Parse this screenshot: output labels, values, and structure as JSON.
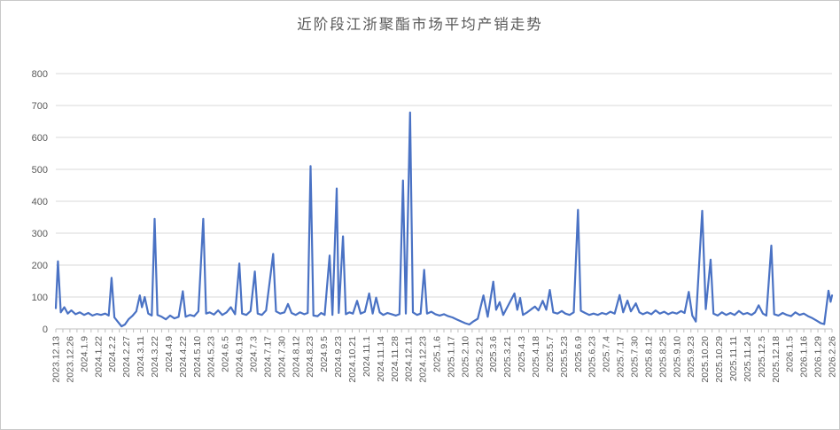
{
  "window": {
    "background": "#ffffff",
    "border_color": "#c9c9c9"
  },
  "chart_data": {
    "type": "line",
    "title": "近阶段江浙聚酯市场平均产销走势",
    "xlabel": "",
    "ylabel": "",
    "ylim": [
      0,
      800
    ],
    "yticks": [
      0,
      100,
      200,
      300,
      400,
      500,
      600,
      700,
      800
    ],
    "grid": true,
    "legend": "none",
    "x_unit": "category_index",
    "categories": [
      "2023.12.13",
      "2023.12.26",
      "2024.1.9",
      "2024.1.22",
      "2024.2.2",
      "2024.2.27",
      "2024.3.11",
      "2024.3.22",
      "2024.4.9",
      "2024.4.22",
      "2024.5.10",
      "2024.5.23",
      "2024.6.5",
      "2024.6.19",
      "2024.7.3",
      "2024.7.17",
      "2024.7.30",
      "2024.8.12",
      "2024.8.23",
      "2024.9.5",
      "2024.9.23",
      "2024.10.21",
      "2024.11.1",
      "2024.11.14",
      "2024.11.28",
      "2024.12.11",
      "2024.12.23",
      "2025.1.6",
      "2025.1.17",
      "2025.2.10",
      "2025.2.21",
      "2025.3.6",
      "2025.3.21",
      "2025.4.3",
      "2025.4.18",
      "2025.5.7",
      "2025.5.23",
      "2025.6.9",
      "2025.6.23",
      "2025.7.4",
      "2025.7.17",
      "2025.7.30",
      "2025.8.12",
      "2025.8.25",
      "2025.9.10",
      "2025.9.23",
      "2025.10.20",
      "2025.10.29",
      "2025.11.11",
      "2025.11.24",
      "2025.12.5",
      "2025.12.18",
      "2026.1.5",
      "2026.1.16",
      "2026.1.29",
      "2026.2.26"
    ],
    "series": [
      {
        "color": "#4a72c4",
        "points": [
          [
            0,
            65
          ],
          [
            0.15,
            212
          ],
          [
            0.35,
            52
          ],
          [
            0.6,
            68
          ],
          [
            0.85,
            48
          ],
          [
            1.1,
            58
          ],
          [
            1.4,
            46
          ],
          [
            1.7,
            52
          ],
          [
            2.0,
            44
          ],
          [
            2.3,
            50
          ],
          [
            2.6,
            42
          ],
          [
            2.9,
            47
          ],
          [
            3.2,
            44
          ],
          [
            3.5,
            48
          ],
          [
            3.75,
            42
          ],
          [
            3.95,
            160
          ],
          [
            4.15,
            36
          ],
          [
            4.4,
            22
          ],
          [
            4.65,
            8
          ],
          [
            4.9,
            14
          ],
          [
            5.15,
            30
          ],
          [
            5.45,
            42
          ],
          [
            5.7,
            55
          ],
          [
            5.95,
            105
          ],
          [
            6.1,
            68
          ],
          [
            6.3,
            100
          ],
          [
            6.55,
            48
          ],
          [
            6.8,
            42
          ],
          [
            7.0,
            345
          ],
          [
            7.2,
            44
          ],
          [
            7.5,
            38
          ],
          [
            7.8,
            30
          ],
          [
            8.1,
            42
          ],
          [
            8.4,
            33
          ],
          [
            8.7,
            38
          ],
          [
            9.0,
            118
          ],
          [
            9.2,
            38
          ],
          [
            9.5,
            44
          ],
          [
            9.8,
            40
          ],
          [
            10.1,
            55
          ],
          [
            10.45,
            345
          ],
          [
            10.65,
            48
          ],
          [
            10.9,
            52
          ],
          [
            11.2,
            45
          ],
          [
            11.5,
            58
          ],
          [
            11.8,
            44
          ],
          [
            12.1,
            52
          ],
          [
            12.4,
            68
          ],
          [
            12.7,
            46
          ],
          [
            13.0,
            205
          ],
          [
            13.2,
            48
          ],
          [
            13.5,
            44
          ],
          [
            13.8,
            56
          ],
          [
            14.1,
            180
          ],
          [
            14.3,
            48
          ],
          [
            14.6,
            44
          ],
          [
            14.9,
            58
          ],
          [
            15.4,
            235
          ],
          [
            15.6,
            55
          ],
          [
            15.9,
            48
          ],
          [
            16.2,
            52
          ],
          [
            16.45,
            78
          ],
          [
            16.7,
            50
          ],
          [
            17.0,
            44
          ],
          [
            17.3,
            52
          ],
          [
            17.6,
            46
          ],
          [
            17.85,
            50
          ],
          [
            18.05,
            510
          ],
          [
            18.25,
            42
          ],
          [
            18.55,
            40
          ],
          [
            18.8,
            50
          ],
          [
            19.05,
            44
          ],
          [
            19.4,
            230
          ],
          [
            19.6,
            44
          ],
          [
            19.9,
            440
          ],
          [
            20.05,
            50
          ],
          [
            20.35,
            290
          ],
          [
            20.55,
            46
          ],
          [
            20.8,
            52
          ],
          [
            21.05,
            48
          ],
          [
            21.35,
            88
          ],
          [
            21.6,
            48
          ],
          [
            21.9,
            54
          ],
          [
            22.2,
            111
          ],
          [
            22.45,
            48
          ],
          [
            22.7,
            98
          ],
          [
            22.95,
            52
          ],
          [
            23.2,
            44
          ],
          [
            23.5,
            50
          ],
          [
            23.8,
            46
          ],
          [
            24.1,
            42
          ],
          [
            24.35,
            46
          ],
          [
            24.6,
            465
          ],
          [
            24.8,
            48
          ],
          [
            25.1,
            678
          ],
          [
            25.3,
            52
          ],
          [
            25.6,
            44
          ],
          [
            25.85,
            48
          ],
          [
            26.1,
            185
          ],
          [
            26.3,
            48
          ],
          [
            26.6,
            54
          ],
          [
            26.9,
            46
          ],
          [
            27.2,
            42
          ],
          [
            27.5,
            46
          ],
          [
            27.8,
            40
          ],
          [
            28.1,
            36
          ],
          [
            28.4,
            30
          ],
          [
            28.7,
            24
          ],
          [
            29.0,
            18
          ],
          [
            29.3,
            14
          ],
          [
            29.6,
            24
          ],
          [
            29.9,
            32
          ],
          [
            30.3,
            105
          ],
          [
            30.6,
            38
          ],
          [
            31.0,
            148
          ],
          [
            31.2,
            60
          ],
          [
            31.45,
            84
          ],
          [
            31.7,
            44
          ],
          [
            32.5,
            111
          ],
          [
            32.7,
            60
          ],
          [
            32.9,
            97
          ],
          [
            33.1,
            44
          ],
          [
            33.4,
            52
          ],
          [
            33.7,
            62
          ],
          [
            33.95,
            70
          ],
          [
            34.2,
            58
          ],
          [
            34.5,
            88
          ],
          [
            34.75,
            60
          ],
          [
            35.0,
            122
          ],
          [
            35.25,
            52
          ],
          [
            35.55,
            48
          ],
          [
            35.85,
            56
          ],
          [
            36.1,
            48
          ],
          [
            36.4,
            44
          ],
          [
            36.7,
            52
          ],
          [
            37.0,
            373
          ],
          [
            37.2,
            57
          ],
          [
            37.5,
            50
          ],
          [
            37.8,
            44
          ],
          [
            38.1,
            48
          ],
          [
            38.4,
            44
          ],
          [
            38.7,
            50
          ],
          [
            39.0,
            46
          ],
          [
            39.3,
            54
          ],
          [
            39.6,
            48
          ],
          [
            39.95,
            106
          ],
          [
            40.2,
            52
          ],
          [
            40.5,
            89
          ],
          [
            40.75,
            55
          ],
          [
            41.1,
            80
          ],
          [
            41.35,
            52
          ],
          [
            41.6,
            46
          ],
          [
            41.9,
            52
          ],
          [
            42.2,
            46
          ],
          [
            42.5,
            58
          ],
          [
            42.8,
            48
          ],
          [
            43.1,
            54
          ],
          [
            43.4,
            46
          ],
          [
            43.7,
            52
          ],
          [
            44.0,
            48
          ],
          [
            44.3,
            56
          ],
          [
            44.55,
            50
          ],
          [
            44.85,
            116
          ],
          [
            45.1,
            42
          ],
          [
            45.35,
            23
          ],
          [
            45.8,
            370
          ],
          [
            46.05,
            62
          ],
          [
            46.4,
            217
          ],
          [
            46.6,
            48
          ],
          [
            46.9,
            42
          ],
          [
            47.2,
            52
          ],
          [
            47.5,
            44
          ],
          [
            47.8,
            50
          ],
          [
            48.1,
            44
          ],
          [
            48.4,
            56
          ],
          [
            48.7,
            46
          ],
          [
            49.0,
            50
          ],
          [
            49.3,
            44
          ],
          [
            49.55,
            52
          ],
          [
            49.8,
            74
          ],
          [
            50.1,
            48
          ],
          [
            50.35,
            42
          ],
          [
            50.7,
            261
          ],
          [
            50.9,
            46
          ],
          [
            51.2,
            42
          ],
          [
            51.5,
            50
          ],
          [
            51.8,
            44
          ],
          [
            52.1,
            40
          ],
          [
            52.4,
            52
          ],
          [
            52.7,
            44
          ],
          [
            53.0,
            48
          ],
          [
            53.3,
            40
          ],
          [
            53.6,
            34
          ],
          [
            53.9,
            26
          ],
          [
            54.2,
            18
          ],
          [
            54.45,
            15
          ],
          [
            54.75,
            120
          ],
          [
            54.9,
            85
          ],
          [
            55,
            105
          ]
        ]
      }
    ],
    "gridline_color": "#d9d9d9",
    "axis_color": "#bfbfbf",
    "tick_label_color": "#595959",
    "title_color": "#595959"
  }
}
